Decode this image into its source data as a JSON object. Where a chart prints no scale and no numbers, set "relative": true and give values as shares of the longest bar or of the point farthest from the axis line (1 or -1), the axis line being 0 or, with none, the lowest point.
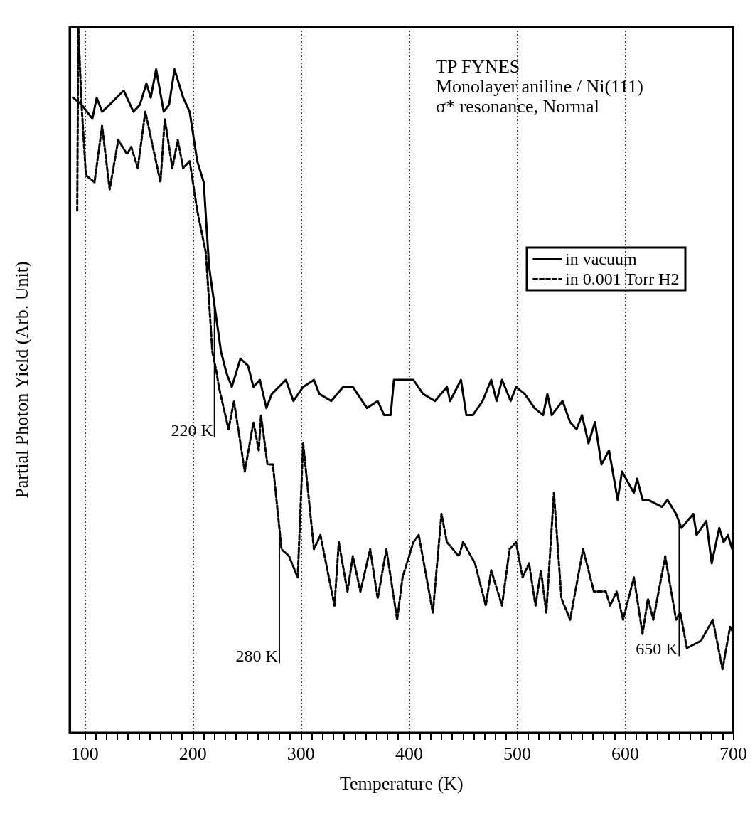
{
  "chart_data": {
    "type": "line",
    "xlabel": "Temperature (K)",
    "ylabel": "Partial Photon Yield (Arb. Unit)",
    "relative": true,
    "xlim": [
      86,
      700
    ],
    "xticks": [
      100,
      200,
      300,
      400,
      500,
      600,
      700
    ],
    "grid": "x",
    "legend": "right",
    "marker": "none",
    "tick_labels": "x",
    "annotations": [
      "TP FYNES",
      "Monolayer aniline / Ni(111)",
      "σ* resonance, Normal",
      {
        "text": "220 K",
        "x": 220,
        "y": 0.61
      },
      {
        "text": "280 K",
        "x": 280,
        "y": 0.29
      },
      {
        "text": "650 K",
        "x": 650,
        "y": 0.3
      }
    ],
    "series": [
      {
        "name": "in vacuum",
        "color": "#000000",
        "line_style": "solid",
        "x": [
          89,
          97,
          107,
          111,
          116,
          123,
          136,
          145,
          151,
          157,
          161,
          166,
          173,
          178,
          183,
          191,
          197,
          204,
          210,
          215,
          226,
          231,
          236,
          244,
          251,
          256,
          262,
          268,
          273,
          286,
          293,
          302,
          312,
          317,
          328,
          339,
          348,
          361,
          371,
          377,
          383,
          386,
          394,
          404,
          413,
          424,
          435,
          438,
          448,
          453,
          459,
          468,
          476,
          481,
          486,
          494,
          499,
          507,
          516,
          524,
          528,
          532,
          542,
          549,
          555,
          560,
          566,
          572,
          578,
          585,
          593,
          597,
          608,
          611,
          616,
          621,
          634,
          639,
          647,
          652,
          663,
          666,
          675,
          680,
          687,
          691,
          695,
          699
        ],
        "values": [
          0.9,
          0.89,
          0.87,
          0.9,
          0.88,
          0.89,
          0.91,
          0.88,
          0.89,
          0.92,
          0.9,
          0.94,
          0.88,
          0.89,
          0.94,
          0.9,
          0.88,
          0.81,
          0.78,
          0.66,
          0.54,
          0.51,
          0.49,
          0.53,
          0.52,
          0.49,
          0.5,
          0.46,
          0.48,
          0.5,
          0.47,
          0.49,
          0.5,
          0.48,
          0.47,
          0.49,
          0.49,
          0.46,
          0.47,
          0.45,
          0.45,
          0.5,
          0.5,
          0.5,
          0.48,
          0.47,
          0.49,
          0.47,
          0.5,
          0.45,
          0.45,
          0.47,
          0.5,
          0.47,
          0.5,
          0.47,
          0.49,
          0.48,
          0.46,
          0.45,
          0.48,
          0.45,
          0.47,
          0.44,
          0.43,
          0.45,
          0.41,
          0.44,
          0.38,
          0.4,
          0.33,
          0.37,
          0.34,
          0.36,
          0.33,
          0.33,
          0.32,
          0.33,
          0.31,
          0.29,
          0.31,
          0.28,
          0.3,
          0.24,
          0.29,
          0.27,
          0.28,
          0.26
        ]
      },
      {
        "name": "in 0.001 Torr H2",
        "color": "#000000",
        "line_style": "dashed",
        "x": [
          93,
          94,
          97,
          101,
          109,
          116,
          123,
          131,
          139,
          143,
          149,
          156,
          170,
          174,
          181,
          186,
          191,
          197,
          204,
          212,
          218,
          222,
          224,
          233,
          238,
          248,
          256,
          261,
          263,
          269,
          274,
          282,
          289,
          297,
          302,
          312,
          318,
          331,
          335,
          343,
          348,
          355,
          364,
          371,
          379,
          389,
          394,
          404,
          409,
          422,
          430,
          435,
          446,
          450,
          461,
          471,
          476,
          486,
          493,
          499,
          505,
          511,
          517,
          522,
          527,
          534,
          541,
          549,
          561,
          571,
          582,
          586,
          592,
          598,
          608,
          616,
          621,
          626,
          637,
          647,
          651,
          657,
          670,
          681,
          690,
          697,
          700
        ],
        "values": [
          0.74,
          1,
          0.89,
          0.79,
          0.78,
          0.86,
          0.77,
          0.84,
          0.82,
          0.83,
          0.8,
          0.88,
          0.78,
          0.87,
          0.8,
          0.84,
          0.8,
          0.81,
          0.74,
          0.68,
          0.54,
          0.51,
          0.49,
          0.43,
          0.47,
          0.37,
          0.44,
          0.4,
          0.45,
          0.38,
          0.38,
          0.26,
          0.25,
          0.22,
          0.41,
          0.26,
          0.28,
          0.18,
          0.27,
          0.2,
          0.25,
          0.2,
          0.26,
          0.19,
          0.26,
          0.16,
          0.22,
          0.27,
          0.28,
          0.17,
          0.31,
          0.27,
          0.25,
          0.27,
          0.24,
          0.18,
          0.23,
          0.18,
          0.26,
          0.27,
          0.22,
          0.24,
          0.18,
          0.23,
          0.17,
          0.34,
          0.19,
          0.16,
          0.26,
          0.2,
          0.2,
          0.18,
          0.2,
          0.16,
          0.22,
          0.14,
          0.19,
          0.16,
          0.25,
          0.16,
          0.17,
          0.12,
          0.13,
          0.16,
          0.09,
          0.15,
          0.14
        ]
      }
    ]
  }
}
